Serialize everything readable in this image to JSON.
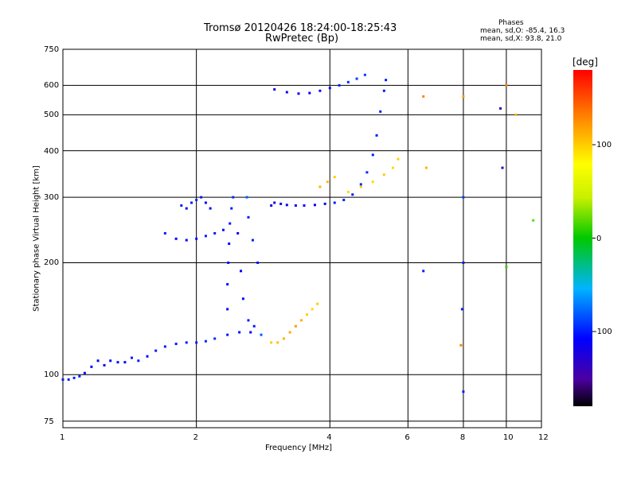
{
  "chart_data": {
    "type": "scatter",
    "title": "Tromsø 20120426 18:24:00-18:25:43",
    "subtitle": "RwPretec (Bp)",
    "stats": {
      "heading": "Phases",
      "line1": "mean, sd,O: -85.4, 16.3",
      "line2": "mean, sd,X:  93.8, 21.0"
    },
    "xlabel": "Frequency [MHz]",
    "ylabel": "Stationary phase Virtual Height [km]",
    "x_scale": "log",
    "y_scale": "log",
    "xlim": [
      1,
      12
    ],
    "ylim": [
      72,
      750
    ],
    "x_ticks": [
      1,
      2,
      4,
      6,
      8,
      10,
      12
    ],
    "y_ticks": [
      75,
      100,
      200,
      300,
      400,
      500,
      600,
      750
    ],
    "grid": true,
    "colorbar": {
      "label": "[deg]",
      "range": [
        -180,
        180
      ],
      "ticks": [
        100,
        0,
        -100
      ]
    },
    "series": [
      {
        "name": "",
        "points": [
          {
            "x": 1.0,
            "y": 97,
            "p": -100
          },
          {
            "x": 1.03,
            "y": 97,
            "p": -100
          },
          {
            "x": 1.06,
            "y": 98,
            "p": -100
          },
          {
            "x": 1.09,
            "y": 99,
            "p": -100
          },
          {
            "x": 1.12,
            "y": 101,
            "p": -105
          },
          {
            "x": 1.16,
            "y": 105,
            "p": -110
          },
          {
            "x": 1.2,
            "y": 109,
            "p": -115
          },
          {
            "x": 1.24,
            "y": 106,
            "p": -120
          },
          {
            "x": 1.28,
            "y": 109,
            "p": -110
          },
          {
            "x": 1.33,
            "y": 108,
            "p": -105
          },
          {
            "x": 1.38,
            "y": 108,
            "p": -110
          },
          {
            "x": 1.43,
            "y": 111,
            "p": -100
          },
          {
            "x": 1.48,
            "y": 109,
            "p": -100
          },
          {
            "x": 1.55,
            "y": 112,
            "p": -105
          },
          {
            "x": 1.62,
            "y": 116,
            "p": -100
          },
          {
            "x": 1.7,
            "y": 119,
            "p": -100
          },
          {
            "x": 1.8,
            "y": 121,
            "p": -100
          },
          {
            "x": 1.9,
            "y": 122,
            "p": -100
          },
          {
            "x": 2.0,
            "y": 122,
            "p": -100
          },
          {
            "x": 2.1,
            "y": 123,
            "p": -95
          },
          {
            "x": 2.2,
            "y": 125,
            "p": -95
          },
          {
            "x": 2.35,
            "y": 128,
            "p": -100
          },
          {
            "x": 2.5,
            "y": 130,
            "p": -105
          },
          {
            "x": 2.65,
            "y": 130,
            "p": -110
          },
          {
            "x": 2.8,
            "y": 128,
            "p": -80
          }
        ]
      },
      {
        "name": "",
        "points": [
          {
            "x": 2.35,
            "y": 150,
            "p": -110
          },
          {
            "x": 2.35,
            "y": 175,
            "p": -110
          },
          {
            "x": 2.36,
            "y": 200,
            "p": -105
          },
          {
            "x": 2.37,
            "y": 225,
            "p": -110
          },
          {
            "x": 2.38,
            "y": 255,
            "p": -100
          },
          {
            "x": 2.4,
            "y": 280,
            "p": -100
          },
          {
            "x": 2.42,
            "y": 300,
            "p": -95
          },
          {
            "x": 2.48,
            "y": 240,
            "p": -110
          },
          {
            "x": 2.52,
            "y": 190,
            "p": -110
          },
          {
            "x": 2.55,
            "y": 160,
            "p": -105
          },
          {
            "x": 2.62,
            "y": 140,
            "p": -100
          },
          {
            "x": 2.7,
            "y": 135,
            "p": -100
          },
          {
            "x": 2.6,
            "y": 300,
            "p": -80
          },
          {
            "x": 2.62,
            "y": 265,
            "p": -100
          },
          {
            "x": 2.68,
            "y": 230,
            "p": -100
          },
          {
            "x": 2.75,
            "y": 200,
            "p": -105
          }
        ]
      },
      {
        "name": "",
        "points": [
          {
            "x": 1.85,
            "y": 285,
            "p": -100
          },
          {
            "x": 1.9,
            "y": 280,
            "p": -105
          },
          {
            "x": 1.95,
            "y": 290,
            "p": -100
          },
          {
            "x": 2.0,
            "y": 295,
            "p": -95
          },
          {
            "x": 2.05,
            "y": 300,
            "p": -100
          },
          {
            "x": 2.1,
            "y": 290,
            "p": -110
          },
          {
            "x": 2.15,
            "y": 280,
            "p": -105
          },
          {
            "x": 1.7,
            "y": 240,
            "p": -100
          },
          {
            "x": 1.8,
            "y": 232,
            "p": -105
          },
          {
            "x": 1.9,
            "y": 230,
            "p": -110
          },
          {
            "x": 2.0,
            "y": 232,
            "p": -105
          },
          {
            "x": 2.1,
            "y": 236,
            "p": -100
          },
          {
            "x": 2.2,
            "y": 240,
            "p": -100
          },
          {
            "x": 2.3,
            "y": 245,
            "p": -105
          }
        ]
      },
      {
        "name": "",
        "points": [
          {
            "x": 2.95,
            "y": 285,
            "p": -115
          },
          {
            "x": 3.0,
            "y": 290,
            "p": -120
          },
          {
            "x": 3.1,
            "y": 288,
            "p": -115
          },
          {
            "x": 3.2,
            "y": 286,
            "p": -110
          },
          {
            "x": 3.35,
            "y": 285,
            "p": -110
          },
          {
            "x": 3.5,
            "y": 285,
            "p": -110
          },
          {
            "x": 3.7,
            "y": 286,
            "p": -110
          },
          {
            "x": 3.9,
            "y": 288,
            "p": -105
          },
          {
            "x": 4.1,
            "y": 290,
            "p": -100
          },
          {
            "x": 4.3,
            "y": 295,
            "p": -100
          },
          {
            "x": 4.5,
            "y": 305,
            "p": -100
          },
          {
            "x": 4.7,
            "y": 325,
            "p": -95
          },
          {
            "x": 4.85,
            "y": 350,
            "p": -95
          },
          {
            "x": 5.0,
            "y": 390,
            "p": -100
          },
          {
            "x": 5.1,
            "y": 440,
            "p": -100
          },
          {
            "x": 5.2,
            "y": 510,
            "p": -100
          },
          {
            "x": 5.3,
            "y": 580,
            "p": -100
          },
          {
            "x": 5.35,
            "y": 620,
            "p": -100
          }
        ]
      },
      {
        "name": "",
        "points": [
          {
            "x": 3.0,
            "y": 585,
            "p": -120
          },
          {
            "x": 3.2,
            "y": 575,
            "p": -115
          },
          {
            "x": 3.4,
            "y": 570,
            "p": -110
          },
          {
            "x": 3.6,
            "y": 572,
            "p": -110
          },
          {
            "x": 3.8,
            "y": 580,
            "p": -105
          },
          {
            "x": 4.0,
            "y": 590,
            "p": -105
          },
          {
            "x": 4.2,
            "y": 600,
            "p": -100
          },
          {
            "x": 4.4,
            "y": 612,
            "p": -95
          },
          {
            "x": 4.6,
            "y": 625,
            "p": -90
          },
          {
            "x": 4.8,
            "y": 640,
            "p": -90
          }
        ]
      },
      {
        "name": "",
        "points": [
          {
            "x": 2.95,
            "y": 122,
            "p": 100
          },
          {
            "x": 3.05,
            "y": 122,
            "p": 105
          },
          {
            "x": 3.15,
            "y": 125,
            "p": 110
          },
          {
            "x": 3.25,
            "y": 130,
            "p": 115
          },
          {
            "x": 3.35,
            "y": 135,
            "p": 120
          },
          {
            "x": 3.45,
            "y": 140,
            "p": 110
          },
          {
            "x": 3.55,
            "y": 145,
            "p": 100
          },
          {
            "x": 3.65,
            "y": 150,
            "p": 95
          },
          {
            "x": 3.75,
            "y": 155,
            "p": 100
          },
          {
            "x": 3.8,
            "y": 320,
            "p": 110
          },
          {
            "x": 3.95,
            "y": 330,
            "p": 105
          },
          {
            "x": 4.1,
            "y": 340,
            "p": 100
          },
          {
            "x": 4.4,
            "y": 310,
            "p": 95
          },
          {
            "x": 4.7,
            "y": 320,
            "p": 100
          },
          {
            "x": 5.0,
            "y": 330,
            "p": 95
          },
          {
            "x": 5.3,
            "y": 345,
            "p": 100
          },
          {
            "x": 5.55,
            "y": 360,
            "p": 95
          },
          {
            "x": 5.7,
            "y": 380,
            "p": 100
          }
        ]
      },
      {
        "name": "",
        "points": [
          {
            "x": 6.5,
            "y": 190,
            "p": -100
          },
          {
            "x": 6.5,
            "y": 560,
            "p": 130
          },
          {
            "x": 6.6,
            "y": 360,
            "p": 110
          },
          {
            "x": 7.9,
            "y": 120,
            "p": 130
          },
          {
            "x": 7.95,
            "y": 150,
            "p": -100
          },
          {
            "x": 8.0,
            "y": 200,
            "p": -100
          },
          {
            "x": 8.0,
            "y": 300,
            "p": -90
          },
          {
            "x": 8.0,
            "y": 560,
            "p": 120
          },
          {
            "x": 8.0,
            "y": 90,
            "p": -100
          },
          {
            "x": 9.7,
            "y": 520,
            "p": -140
          },
          {
            "x": 9.8,
            "y": 360,
            "p": -140
          },
          {
            "x": 10.0,
            "y": 195,
            "p": 10
          },
          {
            "x": 10.0,
            "y": 600,
            "p": 130
          },
          {
            "x": 10.5,
            "y": 500,
            "p": 110
          },
          {
            "x": 11.5,
            "y": 260,
            "p": 20
          }
        ]
      }
    ]
  }
}
